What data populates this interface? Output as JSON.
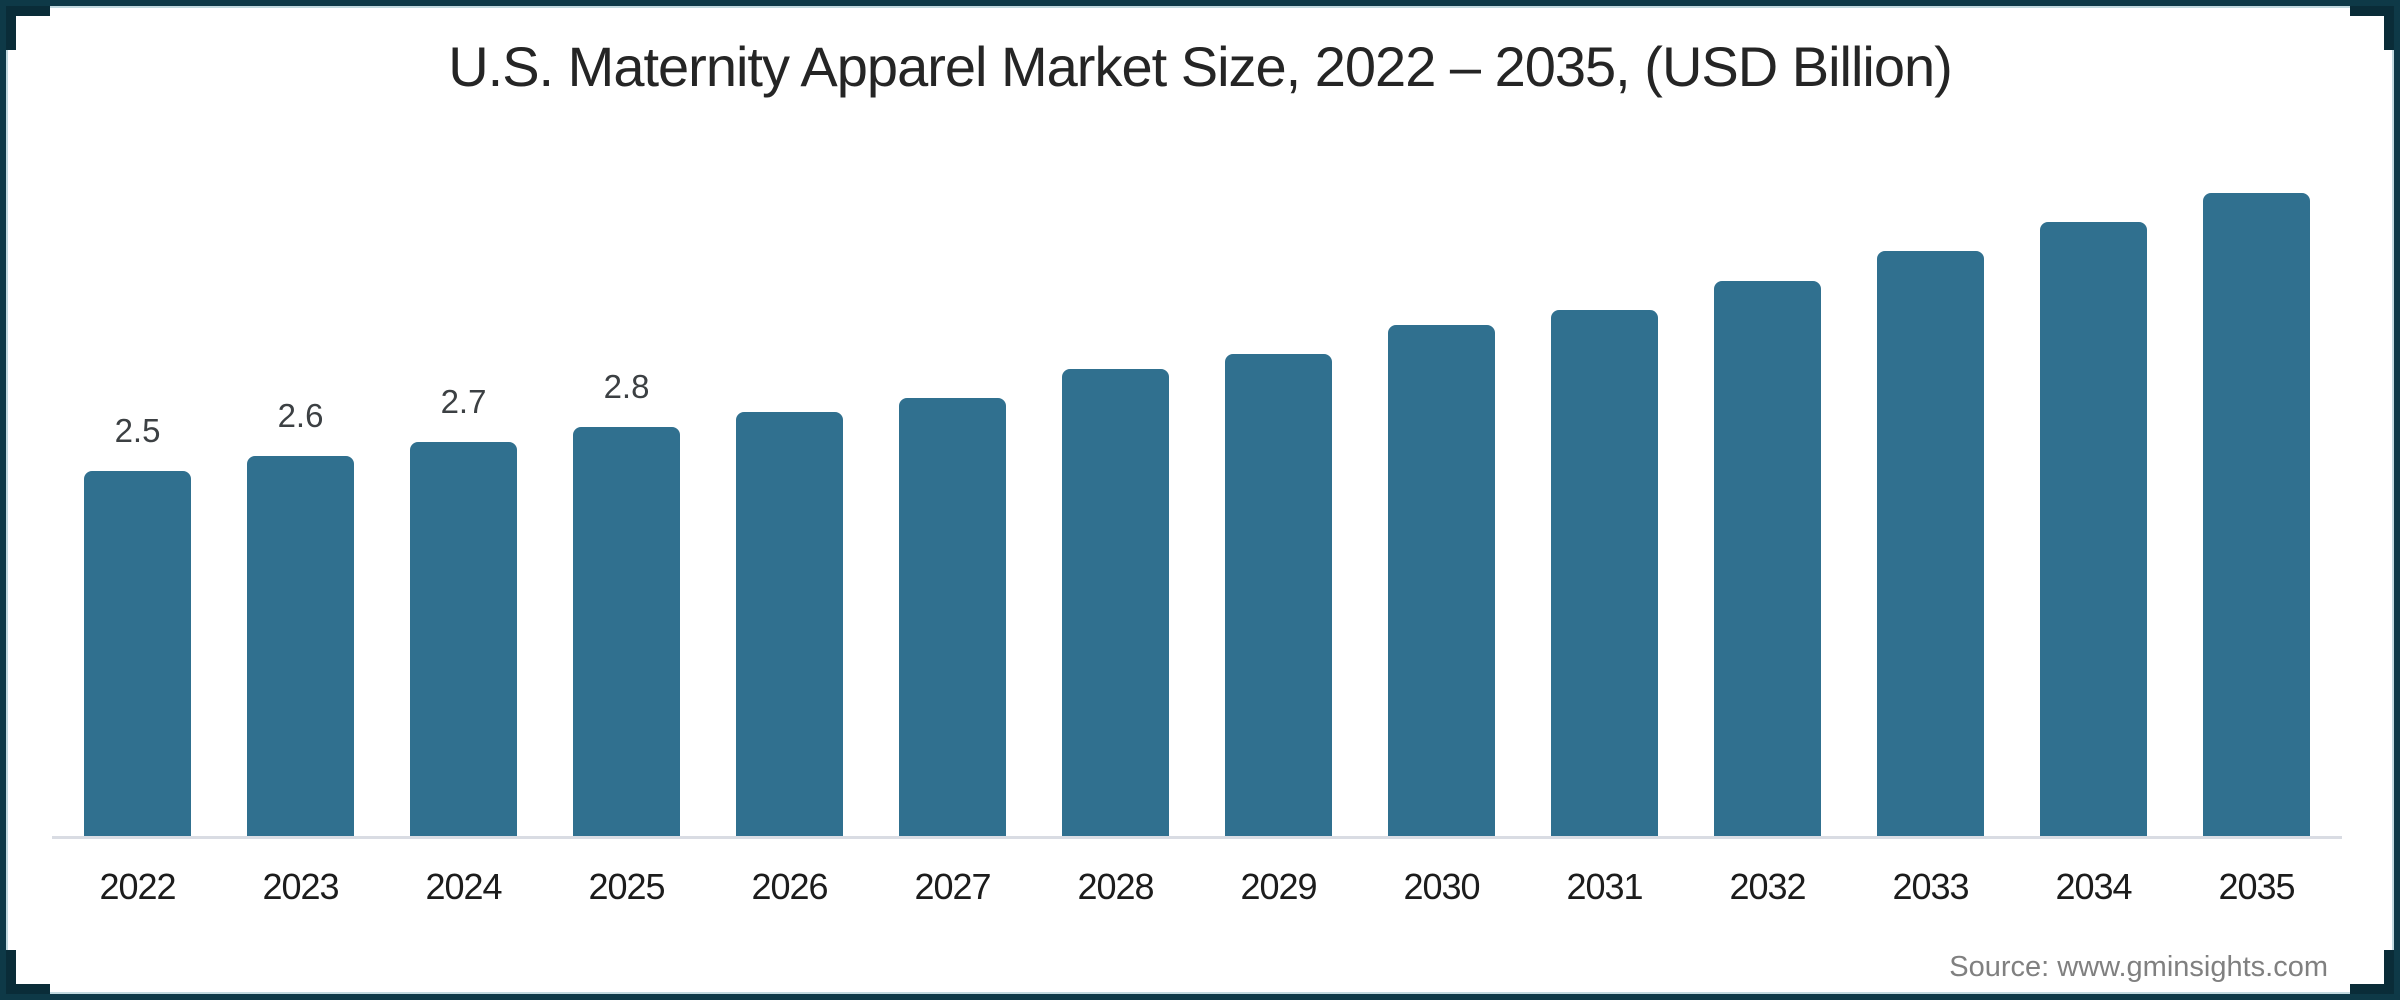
{
  "chart": {
    "source_text": "Source: www.gminsights.com"
  },
  "chart_data": {
    "type": "bar",
    "title": "U.S. Maternity Apparel Market Size, 2022 – 2035, (USD Billion)",
    "categories": [
      "2022",
      "2023",
      "2024",
      "2025",
      "2026",
      "2027",
      "2028",
      "2029",
      "2030",
      "2031",
      "2032",
      "2033",
      "2034",
      "2035"
    ],
    "values": [
      2.5,
      2.6,
      2.7,
      2.8,
      2.9,
      3.0,
      3.2,
      3.3,
      3.5,
      3.6,
      3.8,
      4.0,
      4.2,
      4.4
    ],
    "data_labels": [
      "2.5",
      "2.6",
      "2.7",
      "2.8",
      "",
      "",
      "",
      "",
      "",
      "",
      "",
      "",
      "",
      ""
    ],
    "xlabel": "",
    "ylabel": "",
    "ylim": [
      0,
      4.7
    ],
    "grid": false,
    "legend": "none",
    "bar_color": "#30708f",
    "axis_line_color": "#d9dce3",
    "frame_border_color": "#0e3947",
    "frame_corner_color": "#0a2c38",
    "title_color": "#252525",
    "value_label_color": "#3c4043",
    "year_label_color": "#1c1c1c",
    "source_color": "#808080"
  }
}
